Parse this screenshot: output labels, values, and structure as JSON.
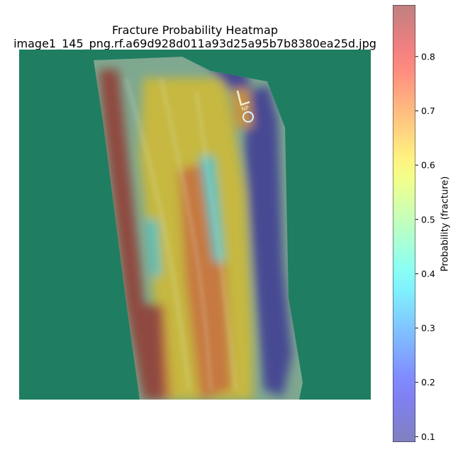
{
  "chart_data": {
    "type": "heatmap",
    "title": "Fracture Probability Heatmap",
    "subtitle": "image1_145_png.rf.a69d928d011a93d25a95b7b8380ea25d.jpg",
    "colorbar": {
      "label": "Probability (fracture)",
      "range": [
        0.09,
        0.895
      ],
      "ticks": [
        0.1,
        0.2,
        0.3,
        0.4,
        0.5,
        0.6,
        0.7,
        0.8
      ],
      "tick_labels": [
        "0.1",
        "0.2",
        "0.3",
        "0.4",
        "0.5",
        "0.6",
        "0.7",
        "0.8"
      ],
      "colormap": "jet",
      "alpha": 0.5
    },
    "grid": false,
    "axes_visible": false,
    "background_value": 0.4,
    "regions": [
      {
        "name": "left-band",
        "value": 0.88
      },
      {
        "name": "left-mid-band",
        "value": 0.72
      },
      {
        "name": "center-band",
        "value": 0.62
      },
      {
        "name": "right-dark-band",
        "value": 0.12
      },
      {
        "name": "upper-right-patch",
        "value": 0.68
      }
    ],
    "overlay_text": "NP"
  }
}
